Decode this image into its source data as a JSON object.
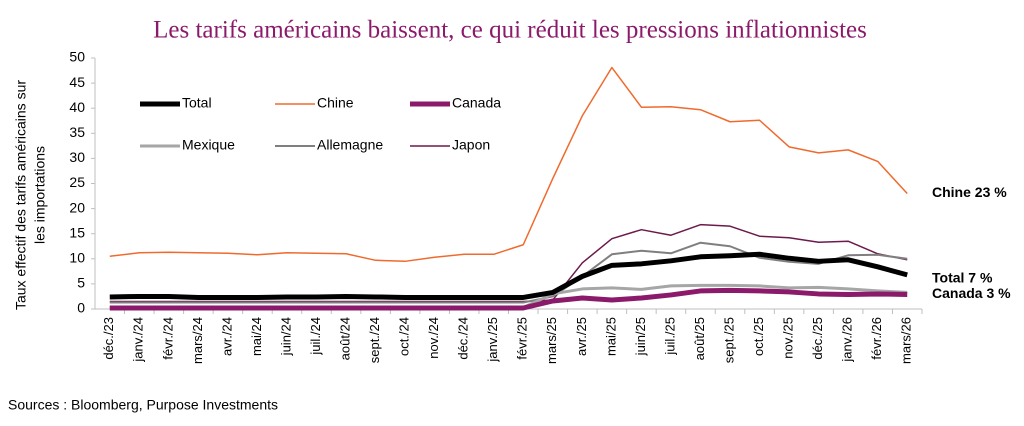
{
  "chart_data": {
    "type": "line",
    "title": "Les tarifs américains baissent, ce qui réduit les pressions inflationnistes",
    "ylabel": [
      "Taux effectif des tarifs américains sur",
      "les importations"
    ],
    "source": "Sources : Bloomberg, Purpose Investments",
    "categories": [
      "déc./23",
      "janv./24",
      "févr./24",
      "mars/24",
      "avr./24",
      "mai/24",
      "juin/24",
      "juil./24",
      "août/24",
      "sept./24",
      "oct./24",
      "nov./24",
      "déc./24",
      "janv./25",
      "févr./25",
      "mars/25",
      "avr./25",
      "mai/25",
      "juin/25",
      "juil./25",
      "août/25",
      "sept./25",
      "oct./25",
      "nov./25",
      "déc./25",
      "janv./26",
      "févr./26",
      "mars/26"
    ],
    "ylim": [
      0,
      50
    ],
    "yticks": [
      0,
      5,
      10,
      15,
      20,
      25,
      30,
      35,
      40,
      45,
      50
    ],
    "series": [
      {
        "name": "Total",
        "color": "#000000",
        "width": 5,
        "values": [
          2.4,
          2.5,
          2.5,
          2.3,
          2.3,
          2.3,
          2.4,
          2.4,
          2.5,
          2.4,
          2.3,
          2.3,
          2.3,
          2.3,
          2.3,
          3.3,
          6.5,
          8.7,
          9.0,
          9.6,
          10.4,
          10.6,
          10.9,
          10.1,
          9.5,
          9.8,
          8.4,
          6.8
        ]
      },
      {
        "name": "Chine",
        "color": "#f06a2e",
        "width": 1.5,
        "values": [
          10.5,
          11.2,
          11.3,
          11.2,
          11.1,
          10.8,
          11.2,
          11.1,
          11.0,
          9.7,
          9.5,
          10.3,
          10.9,
          10.9,
          12.8,
          26.0,
          38.5,
          48.1,
          40.2,
          40.3,
          39.7,
          37.3,
          37.6,
          32.3,
          31.1,
          31.7,
          29.4,
          23.0
        ]
      },
      {
        "name": "Canada",
        "color": "#8b1a6b",
        "width": 5,
        "values": [
          0.2,
          0.2,
          0.2,
          0.2,
          0.2,
          0.2,
          0.2,
          0.2,
          0.2,
          0.2,
          0.2,
          0.2,
          0.2,
          0.2,
          0.2,
          1.6,
          2.2,
          1.8,
          2.2,
          2.8,
          3.6,
          3.7,
          3.6,
          3.4,
          3.0,
          2.9,
          3.0,
          2.9
        ]
      },
      {
        "name": "Mexique",
        "color": "#a6a6a6",
        "width": 3,
        "values": [
          0.3,
          0.3,
          0.3,
          0.3,
          0.3,
          0.3,
          0.3,
          0.3,
          0.3,
          0.3,
          0.3,
          0.3,
          0.3,
          0.3,
          0.3,
          3.0,
          4.0,
          4.2,
          3.9,
          4.6,
          4.7,
          4.7,
          4.6,
          4.2,
          4.3,
          4.0,
          3.6,
          3.3
        ]
      },
      {
        "name": "Allemagne",
        "color": "#7f7f7f",
        "width": 2,
        "values": [
          1.3,
          1.3,
          1.3,
          1.3,
          1.3,
          1.3,
          1.3,
          1.3,
          1.3,
          1.3,
          1.3,
          1.3,
          1.3,
          1.3,
          1.3,
          2.5,
          6.5,
          10.9,
          11.6,
          11.1,
          13.2,
          12.5,
          10.2,
          9.4,
          9.0,
          10.7,
          10.8,
          10.0
        ]
      },
      {
        "name": "Japon",
        "color": "#6b1a4b",
        "width": 1.5,
        "values": [
          1.5,
          1.5,
          1.5,
          1.5,
          1.5,
          1.5,
          1.5,
          1.5,
          1.5,
          1.5,
          1.5,
          1.5,
          1.5,
          1.5,
          1.5,
          1.8,
          9.2,
          14.0,
          15.8,
          14.7,
          16.8,
          16.5,
          14.5,
          14.2,
          13.3,
          13.5,
          11.0,
          9.8
        ]
      }
    ],
    "annotations": [
      {
        "text": "Chine 23 %",
        "color": "#c00000"
      },
      {
        "text": "Total 7 %",
        "color": "#000000"
      },
      {
        "text": "Canada 3 %",
        "color": "#8b1a6b"
      }
    ]
  }
}
